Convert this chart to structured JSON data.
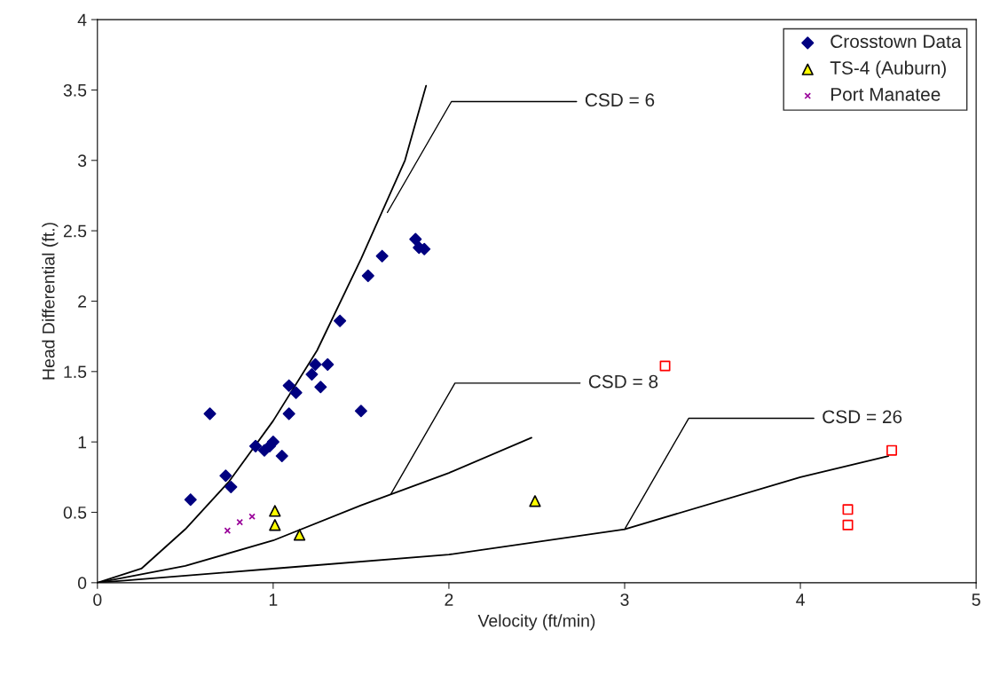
{
  "chart_data": {
    "type": "scatter",
    "xlabel": "Velocity (ft/min)",
    "ylabel": "Head Differential (ft.)",
    "xlim": [
      0,
      5
    ],
    "ylim": [
      0,
      4
    ],
    "xticks": [
      0,
      1,
      2,
      3,
      4,
      5
    ],
    "yticks": [
      0,
      0.5,
      1,
      1.5,
      2,
      2.5,
      3,
      3.5,
      4
    ],
    "grid": false,
    "legend": "top right",
    "series": [
      {
        "name": "Crosstown Data",
        "color": "#000080",
        "marker": "diamond",
        "x": [
          0.53,
          0.64,
          0.73,
          0.76,
          0.9,
          0.95,
          0.98,
          1.0,
          1.05,
          1.09,
          1.09,
          1.13,
          1.22,
          1.24,
          1.27,
          1.31,
          1.38,
          1.5,
          1.54,
          1.62,
          1.81,
          1.83,
          1.86
        ],
        "values": [
          0.59,
          1.2,
          0.76,
          0.68,
          0.97,
          0.94,
          0.97,
          1.0,
          0.9,
          1.4,
          1.2,
          1.35,
          1.48,
          1.55,
          1.39,
          1.55,
          1.86,
          1.22,
          2.18,
          2.32,
          2.44,
          2.38,
          2.37
        ]
      },
      {
        "color": "#ff0000",
        "marker": "square",
        "x": [
          3.23,
          4.52,
          4.27,
          4.27
        ],
        "values": [
          1.54,
          0.94,
          0.52,
          0.41
        ]
      },
      {
        "name": "TS-4 (Auburn)",
        "color": "#ffff00",
        "marker": "triangle",
        "x": [
          1.01,
          1.01,
          1.15,
          2.49
        ],
        "values": [
          0.51,
          0.41,
          0.34,
          0.58
        ]
      },
      {
        "name": "Port Manatee",
        "color": "#990099",
        "marker": "cross",
        "x": [
          0.74,
          0.81,
          0.88
        ],
        "values": [
          0.37,
          0.43,
          0.47
        ]
      },
      {
        "type": "line",
        "color": "#000000",
        "marker": "none",
        "x": [
          0,
          0.25,
          0.5,
          0.75,
          1.0,
          1.25,
          1.5,
          1.75,
          1.87
        ],
        "values": [
          0,
          0.1,
          0.38,
          0.72,
          1.15,
          1.65,
          2.3,
          3.0,
          3.53
        ]
      },
      {
        "type": "line",
        "color": "#000000",
        "marker": "none",
        "x": [
          0,
          0.5,
          1.0,
          1.5,
          2.0,
          2.47
        ],
        "values": [
          0,
          0.12,
          0.3,
          0.55,
          0.78,
          1.03
        ]
      },
      {
        "type": "line",
        "color": "#000000",
        "marker": "none",
        "x": [
          0,
          1,
          2,
          3,
          4,
          4.5
        ],
        "values": [
          0,
          0.1,
          0.2,
          0.38,
          0.75,
          0.9
        ]
      }
    ],
    "annotations": [
      {
        "text": "CSD = 6",
        "x": 1.65,
        "y": 2.63
      },
      {
        "text": "CSD = 8",
        "x": 1.67,
        "y": 0.63
      },
      {
        "text": "CSD = 26",
        "x": 3,
        "y": 0.38
      }
    ]
  }
}
